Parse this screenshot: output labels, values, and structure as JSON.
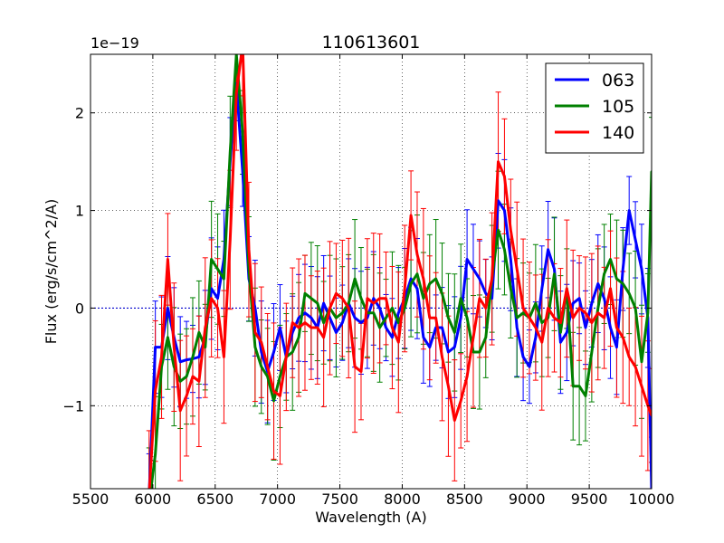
{
  "chart_data": {
    "type": "line",
    "title": "110613601",
    "xlabel": "Wavelength (A)",
    "ylabel": "Flux (erg/s/cm^2/A)",
    "y_offset_label": "1e−19",
    "xlim": [
      5500,
      10000
    ],
    "ylim": [
      -1.85,
      2.6
    ],
    "grid": true,
    "legend_position": "top-right",
    "x_ticks": [
      5500,
      6000,
      6500,
      7000,
      7500,
      8000,
      8500,
      9000,
      9500,
      10000
    ],
    "x_tick_labels": [
      "5500",
      "6000",
      "6500",
      "7000",
      "7500",
      "8000",
      "8500",
      "9000",
      "9500",
      "10000"
    ],
    "y_ticks": [
      -1,
      0,
      1,
      2
    ],
    "y_tick_labels": [
      "−1",
      "0",
      "1",
      "2"
    ],
    "reference_line_y": 0,
    "series": [
      {
        "name": "063",
        "color": "#0000ff",
        "x": [
          5970,
          6020,
          6070,
          6120,
          6170,
          6220,
          6270,
          6320,
          6370,
          6420,
          6470,
          6520,
          6570,
          6620,
          6670,
          6720,
          6770,
          6820,
          6870,
          6920,
          6970,
          7020,
          7070,
          7120,
          7170,
          7220,
          7270,
          7320,
          7370,
          7420,
          7470,
          7520,
          7570,
          7620,
          7670,
          7720,
          7770,
          7820,
          7870,
          7920,
          7970,
          8020,
          8070,
          8120,
          8170,
          8220,
          8270,
          8320,
          8370,
          8420,
          8470,
          8520,
          8570,
          8620,
          8670,
          8720,
          8770,
          8820,
          8870,
          8920,
          8970,
          9020,
          9070,
          9120,
          9170,
          9220,
          9270,
          9320,
          9370,
          9420,
          9470,
          9520,
          9570,
          9620,
          9670,
          9720,
          9770,
          9820,
          9870,
          9920,
          9970,
          10000
        ],
        "y": [
          -1.9,
          -0.4,
          -0.4,
          0.0,
          -0.3,
          -0.55,
          -0.53,
          -0.52,
          -0.5,
          -0.3,
          0.2,
          0.1,
          0.5,
          1.5,
          2.3,
          1.4,
          0.3,
          0.0,
          -0.45,
          -0.65,
          -0.45,
          -0.2,
          -0.5,
          -0.25,
          -0.1,
          -0.05,
          -0.1,
          -0.2,
          0.05,
          -0.1,
          -0.25,
          -0.15,
          0.05,
          -0.1,
          -0.15,
          -0.1,
          0.1,
          0.0,
          -0.2,
          -0.3,
          -0.05,
          0.1,
          0.3,
          0.2,
          -0.3,
          -0.4,
          -0.2,
          -0.2,
          -0.45,
          -0.4,
          -0.1,
          0.5,
          0.4,
          0.3,
          0.15,
          0.1,
          1.1,
          1.0,
          0.5,
          -0.2,
          -0.5,
          -0.6,
          -0.3,
          0.2,
          0.6,
          0.4,
          -0.35,
          -0.25,
          0.05,
          0.1,
          -0.2,
          0.05,
          0.25,
          0.1,
          -0.2,
          -0.4,
          0.4,
          1.0,
          0.7,
          0.4,
          -0.1,
          -1.85
        ]
      },
      {
        "name": "105",
        "color": "#008000",
        "x": [
          5970,
          6020,
          6070,
          6120,
          6170,
          6220,
          6270,
          6320,
          6370,
          6420,
          6470,
          6520,
          6570,
          6620,
          6670,
          6720,
          6770,
          6820,
          6870,
          6920,
          6970,
          7020,
          7070,
          7120,
          7170,
          7220,
          7270,
          7320,
          7370,
          7420,
          7470,
          7520,
          7570,
          7620,
          7670,
          7720,
          7770,
          7820,
          7870,
          7920,
          7970,
          8020,
          8070,
          8120,
          8170,
          8220,
          8270,
          8320,
          8370,
          8420,
          8470,
          8520,
          8570,
          8620,
          8670,
          8720,
          8770,
          8820,
          8870,
          8920,
          8970,
          9020,
          9070,
          9120,
          9170,
          9220,
          9270,
          9320,
          9370,
          9420,
          9470,
          9520,
          9570,
          9620,
          9670,
          9720,
          9770,
          9820,
          9870,
          9920,
          9970,
          10000
        ],
        "y": [
          -2.0,
          -1.5,
          -0.6,
          -0.3,
          -0.6,
          -0.75,
          -0.7,
          -0.5,
          -0.25,
          -0.4,
          0.5,
          0.4,
          0.3,
          1.6,
          2.6,
          1.8,
          0.4,
          -0.4,
          -0.6,
          -0.7,
          -0.95,
          -0.7,
          -0.5,
          -0.45,
          -0.3,
          0.15,
          0.1,
          0.05,
          -0.15,
          0.0,
          -0.1,
          -0.05,
          0.05,
          0.3,
          0.1,
          -0.05,
          -0.05,
          -0.2,
          -0.1,
          0.0,
          -0.15,
          0.0,
          0.25,
          0.35,
          0.1,
          0.25,
          0.3,
          0.15,
          -0.1,
          -0.25,
          0.1,
          -0.1,
          -0.45,
          -0.45,
          -0.3,
          0.3,
          0.8,
          0.6,
          0.2,
          -0.1,
          -0.05,
          -0.1,
          0.05,
          -0.15,
          -0.1,
          0.35,
          -0.25,
          0.2,
          -0.8,
          -0.8,
          -0.9,
          -0.45,
          0.0,
          0.35,
          0.5,
          0.3,
          0.25,
          0.15,
          0.0,
          -0.55,
          -0.05,
          1.4
        ]
      },
      {
        "name": "140",
        "color": "#ff0000",
        "x": [
          5970,
          6020,
          6070,
          6120,
          6170,
          6220,
          6270,
          6320,
          6370,
          6420,
          6470,
          6520,
          6570,
          6620,
          6670,
          6720,
          6770,
          6820,
          6870,
          6920,
          6970,
          7020,
          7070,
          7120,
          7170,
          7220,
          7270,
          7320,
          7370,
          7420,
          7470,
          7520,
          7570,
          7620,
          7670,
          7720,
          7770,
          7820,
          7870,
          7920,
          7970,
          8020,
          8070,
          8120,
          8170,
          8220,
          8270,
          8320,
          8370,
          8420,
          8470,
          8520,
          8570,
          8620,
          8670,
          8720,
          8770,
          8820,
          8870,
          8920,
          8970,
          9020,
          9070,
          9120,
          9170,
          9220,
          9270,
          9320,
          9370,
          9420,
          9470,
          9520,
          9570,
          9620,
          9670,
          9720,
          9770,
          9820,
          9870,
          9920,
          9970,
          10000
        ],
        "y": [
          -1.9,
          -0.85,
          -0.5,
          0.5,
          -0.4,
          -1.05,
          -0.9,
          -0.7,
          -0.75,
          -0.2,
          0.1,
          0.0,
          -0.5,
          0.7,
          2.2,
          2.7,
          0.6,
          -0.25,
          -0.35,
          -0.6,
          -0.85,
          -0.9,
          -0.5,
          -0.15,
          -0.2,
          -0.15,
          -0.2,
          -0.2,
          -0.3,
          0.0,
          0.15,
          0.1,
          0.0,
          -0.6,
          -0.65,
          0.1,
          0.05,
          0.1,
          0.1,
          -0.2,
          -0.35,
          0.2,
          0.95,
          0.55,
          0.3,
          -0.1,
          -0.1,
          -0.5,
          -0.8,
          -1.15,
          -0.95,
          -0.7,
          -0.3,
          0.1,
          0.0,
          0.3,
          1.5,
          1.35,
          0.8,
          0.4,
          0.0,
          -0.1,
          -0.2,
          -0.35,
          0.0,
          -0.1,
          -0.15,
          0.2,
          -0.1,
          0.0,
          -0.05,
          -0.15,
          -0.05,
          -0.1,
          0.2,
          -0.2,
          -0.3,
          -0.5,
          -0.6,
          -0.8,
          -1.0,
          -1.1
        ]
      }
    ]
  }
}
